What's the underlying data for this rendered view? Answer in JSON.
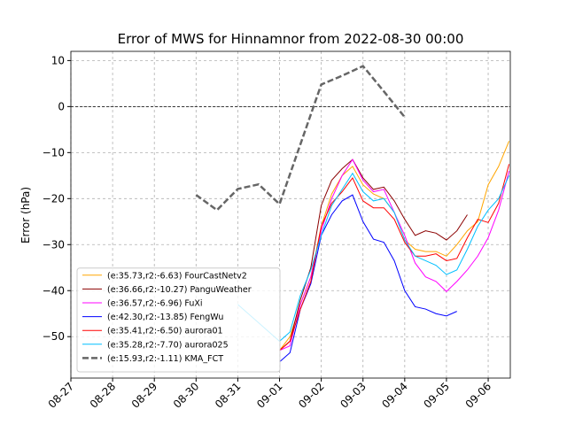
{
  "chart_data": {
    "type": "line",
    "title": "Error of MWS for Hinnamnor from 2022-08-30 00:00",
    "y_label": "Error (hPa)",
    "xlim": [
      "08-27 00:00",
      "09-06 12:43"
    ],
    "ylim": [
      -59,
      12
    ],
    "xticks": [
      "08-27",
      "08-28",
      "08-29",
      "08-30",
      "08-31",
      "09-01",
      "09-02",
      "09-03",
      "09-04",
      "09-05",
      "09-06"
    ],
    "yticks": [
      {
        "value": 10,
        "label": "10"
      },
      {
        "value": 0,
        "label": "0"
      },
      {
        "value": -10,
        "label": "−10"
      },
      {
        "value": -20,
        "label": "−20"
      },
      {
        "value": -30,
        "label": "−30"
      },
      {
        "value": -40,
        "label": "−40"
      },
      {
        "value": -50,
        "label": "−50"
      }
    ],
    "grid": true,
    "hlines": [
      0
    ],
    "legend": "lower left",
    "series": [
      {
        "name": "(e:35.73,r2:-6.63) FourCastNetv2",
        "color": "#ffa500",
        "x": [
          "09-01 00:00",
          "09-01 06:00",
          "09-01 12:00",
          "09-01 18:00",
          "09-02 00:00",
          "09-02 06:00",
          "09-02 12:00",
          "09-02 18:00",
          "09-03 00:00",
          "09-03 06:00",
          "09-03 12:00",
          "09-03 18:00",
          "09-04 00:00",
          "09-04 06:00",
          "09-04 12:00",
          "09-04 18:00",
          "09-05 00:00",
          "09-05 06:00",
          "09-05 12:00",
          "09-05 18:00",
          "09-06 00:00",
          "09-06 06:00",
          "09-06 12:00"
        ],
        "values": [
          -53,
          -50,
          -43,
          -37,
          -26,
          -19,
          -15,
          -13,
          -17,
          -19,
          -20,
          -23,
          -29,
          -31,
          -31.5,
          -31.5,
          -32.5,
          -30,
          -27,
          -25,
          -17,
          -13,
          -7.5
        ]
      },
      {
        "name": "(e:36.66,r2:-10.27) PanguWeather",
        "color": "#8b0000",
        "x": [
          "09-01 00:00",
          "09-01 06:00",
          "09-01 12:00",
          "09-01 18:00",
          "09-02 00:00",
          "09-02 06:00",
          "09-02 12:00",
          "09-02 18:00",
          "09-03 00:00",
          "09-03 06:00",
          "09-03 12:00",
          "09-03 18:00",
          "09-04 00:00",
          "09-04 06:00",
          "09-04 12:00",
          "09-04 18:00",
          "09-05 00:00",
          "09-05 06:00",
          "09-05 12:00"
        ],
        "values": [
          -53,
          -51,
          -42,
          -35,
          -21.5,
          -16,
          -13.5,
          -11.5,
          -15.5,
          -18,
          -17.5,
          -20.5,
          -24.5,
          -28,
          -27,
          -27.5,
          -29,
          -27,
          -23.5
        ]
      },
      {
        "name": "(e:36.57,r2:-6.96) FuXi",
        "color": "#ff00ff",
        "x": [
          "09-01 00:00",
          "09-01 06:00",
          "09-01 12:00",
          "09-01 18:00",
          "09-02 00:00",
          "09-02 06:00",
          "09-02 12:00",
          "09-02 18:00",
          "09-03 00:00",
          "09-03 06:00",
          "09-03 12:00",
          "09-03 18:00",
          "09-04 00:00",
          "09-04 06:00",
          "09-04 12:00",
          "09-04 18:00",
          "09-05 00:00",
          "09-05 06:00",
          "09-05 12:00",
          "09-05 18:00",
          "09-06 00:00",
          "09-06 06:00",
          "09-06 12:00"
        ],
        "values": [
          -53,
          -52,
          -43,
          -37,
          -27,
          -20,
          -15,
          -11.5,
          -16,
          -18.5,
          -18,
          -23,
          -28,
          -34,
          -37,
          -38,
          -40.2,
          -38,
          -35.5,
          -32.5,
          -28.5,
          -22.5,
          -14
        ]
      },
      {
        "name": "(e:42.30,r2:-13.85) FengWu",
        "color": "#0000ff",
        "x": [
          "09-01 00:00",
          "09-01 06:00",
          "09-01 12:00",
          "09-01 18:00",
          "09-02 00:00",
          "09-02 06:00",
          "09-02 12:00",
          "09-02 18:00",
          "09-03 00:00",
          "09-03 06:00",
          "09-03 12:00",
          "09-03 18:00",
          "09-04 00:00",
          "09-04 06:00",
          "09-04 12:00",
          "09-04 18:00",
          "09-05 00:00",
          "09-05 06:00"
        ],
        "values": [
          -55.5,
          -53.5,
          -44,
          -38.5,
          -28,
          -23.5,
          -20.5,
          -19.2,
          -25,
          -28.8,
          -29.5,
          -33.5,
          -40,
          -43.5,
          -44,
          -45,
          -45.5,
          -44.5
        ]
      },
      {
        "name": "(e:35.41,r2:-6.50) aurora01",
        "color": "#ff0000",
        "x": [
          "09-01 00:00",
          "09-01 06:00",
          "09-01 12:00",
          "09-01 18:00",
          "09-02 00:00",
          "09-02 06:00",
          "09-02 12:00",
          "09-02 18:00",
          "09-03 00:00",
          "09-03 06:00",
          "09-03 12:00",
          "09-03 18:00",
          "09-04 00:00",
          "09-04 06:00",
          "09-04 12:00",
          "09-04 18:00",
          "09-05 00:00",
          "09-05 06:00",
          "09-05 12:00",
          "09-05 18:00",
          "09-06 00:00",
          "09-06 06:00",
          "09-06 12:00"
        ],
        "values": [
          -53,
          -51,
          -44,
          -38,
          -26,
          -21,
          -18.5,
          -15.5,
          -20.5,
          -22,
          -22,
          -24.5,
          -29.5,
          -32.5,
          -32.5,
          -32,
          -33.5,
          -33,
          -28.5,
          -24.5,
          -25.2,
          -21,
          -12.5
        ]
      },
      {
        "name": "(e:35.28,r2:-7.70) aurora025",
        "color": "#00bfff",
        "x": [
          "08-31 00:00",
          "08-31 12:00",
          "09-01 00:00",
          "09-01 06:00",
          "09-01 12:00",
          "09-01 18:00",
          "09-02 00:00",
          "09-02 06:00",
          "09-02 12:00",
          "09-02 18:00",
          "09-03 00:00",
          "09-03 06:00",
          "09-03 12:00",
          "09-03 18:00",
          "09-04 00:00",
          "09-04 06:00",
          "09-04 12:00",
          "09-04 18:00",
          "09-05 00:00",
          "09-05 06:00",
          "09-05 12:00",
          "09-05 18:00",
          "09-06 00:00",
          "09-06 06:00",
          "09-06 12:00"
        ],
        "values": [
          -43,
          -47,
          -51,
          -49,
          -41,
          -35.5,
          -28,
          -21.5,
          -18,
          -14.5,
          -18.5,
          -20.5,
          -20,
          -23,
          -29,
          -32.5,
          -33.5,
          -34.5,
          -36.5,
          -35.5,
          -31,
          -26,
          -22.5,
          -20,
          -15
        ]
      },
      {
        "name": "(e:15.93,r2:-1.11) KMA_FCT",
        "color": "#666666",
        "dashed": true,
        "x": [
          "08-30 00:00",
          "08-30 12:00",
          "08-31 00:00",
          "08-31 12:00",
          "09-01 00:00",
          "09-01 12:00",
          "09-02 00:00",
          "09-02 12:00",
          "09-03 00:00",
          "09-03 12:00",
          "09-04 00:00"
        ],
        "values": [
          -19.2,
          -22.5,
          -17.9,
          -16.9,
          -21.2,
          -8.2,
          4.8,
          6.7,
          8.8,
          3.3,
          -2.3
        ]
      }
    ]
  }
}
